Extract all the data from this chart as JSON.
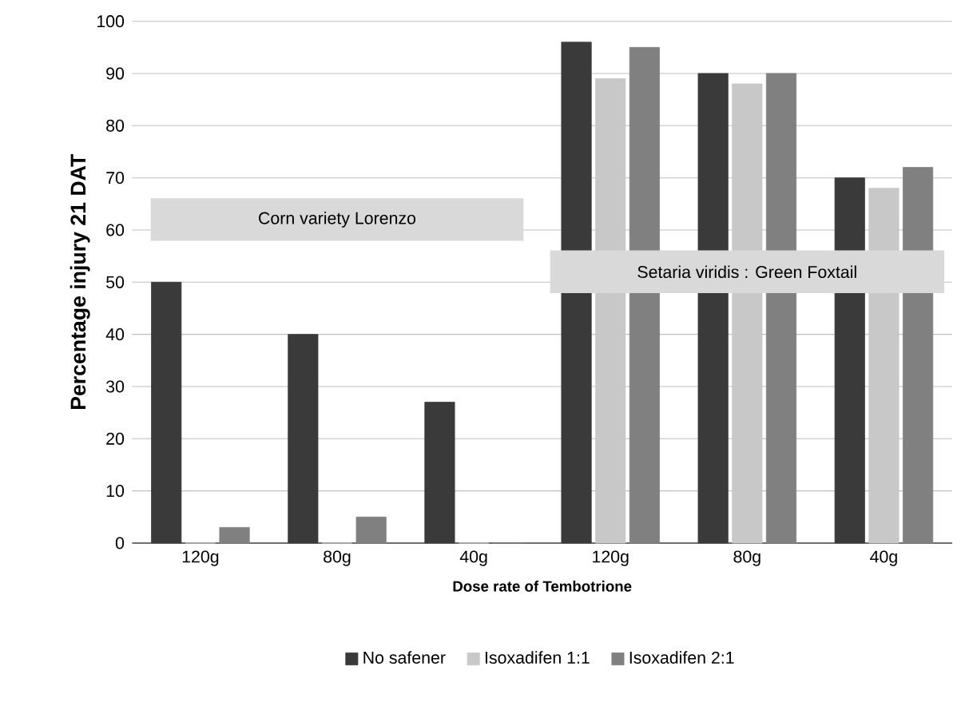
{
  "chart_data": {
    "type": "bar",
    "xlabel": "Dose rate of Tembotrione",
    "ylabel": "Percentage injury 21 DAT",
    "categories": [
      "120g",
      "80g",
      "40g",
      "120g",
      "80g",
      "40g"
    ],
    "series": [
      {
        "name": "No safener",
        "color": "#3a3a3a",
        "values": [
          50,
          40,
          27,
          96,
          90,
          70
        ]
      },
      {
        "name": "Isoxadifen 1:1",
        "color": "#c8c8c8",
        "values": [
          0,
          0,
          0,
          89,
          88,
          68
        ]
      },
      {
        "name": "Isoxadifen 2:1",
        "color": "#808080",
        "values": [
          3,
          5,
          0,
          95,
          90,
          72
        ]
      }
    ],
    "ylim": [
      0,
      100
    ],
    "yticks": [
      0,
      10,
      20,
      30,
      40,
      50,
      60,
      70,
      80,
      90,
      100
    ],
    "grid": "y",
    "legend": "bottom",
    "annotations": [
      "Corn variety Lorenzo",
      "Setaria viridis : Green Foxtail"
    ]
  }
}
